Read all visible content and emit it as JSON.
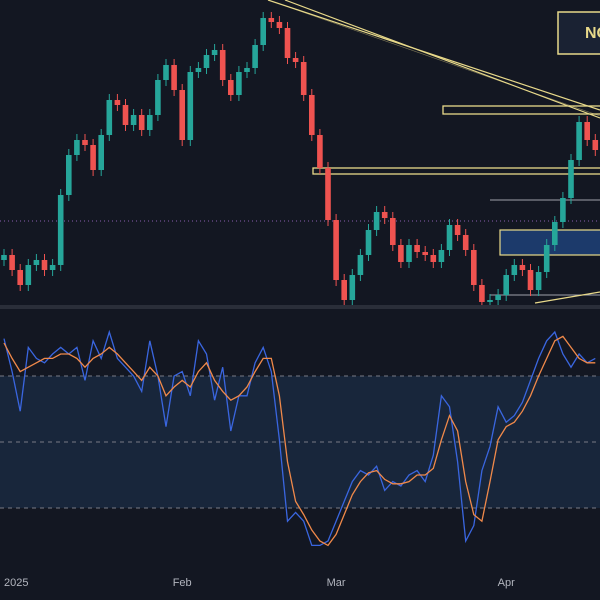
{
  "chart_data": [
    {
      "type": "candlestick",
      "annotation": "NO",
      "up_color": "#26a69a",
      "down_color": "#ef5350",
      "ylim": [
        0,
        310
      ],
      "xticks": [
        {
          "value": 0,
          "label": "2025"
        },
        {
          "value": 22,
          "label": "Feb"
        },
        {
          "value": 41,
          "label": "Mar"
        },
        {
          "value": 62,
          "label": "Apr"
        }
      ],
      "open": [
        50,
        55,
        40,
        25,
        45,
        50,
        40,
        45,
        115,
        155,
        170,
        165,
        140,
        175,
        210,
        205,
        185,
        195,
        180,
        195,
        230,
        245,
        220,
        170,
        238,
        242,
        255,
        260,
        230,
        215,
        238,
        242,
        265,
        292,
        288,
        282,
        252,
        248,
        215,
        175,
        142,
        90,
        30,
        10,
        35,
        55,
        80,
        98,
        92,
        65,
        48,
        65,
        58,
        55,
        48,
        60,
        85,
        75,
        60,
        25,
        8,
        10,
        15,
        35,
        45,
        40,
        20,
        38,
        65,
        88,
        112,
        150,
        188,
        170
      ],
      "high": [
        61,
        61,
        46,
        51,
        56,
        56,
        51,
        121,
        161,
        176,
        176,
        171,
        181,
        216,
        216,
        211,
        201,
        201,
        201,
        236,
        251,
        251,
        226,
        244,
        248,
        261,
        266,
        266,
        236,
        244,
        248,
        271,
        298,
        298,
        294,
        288,
        258,
        254,
        221,
        181,
        148,
        96,
        36,
        41,
        61,
        86,
        104,
        104,
        98,
        71,
        71,
        71,
        64,
        61,
        66,
        91,
        91,
        81,
        66,
        31,
        16,
        21,
        41,
        51,
        51,
        46,
        44,
        71,
        94,
        118,
        156,
        194,
        194,
        176
      ],
      "low": [
        44,
        34,
        19,
        19,
        39,
        34,
        34,
        39,
        109,
        149,
        159,
        134,
        134,
        169,
        199,
        179,
        179,
        174,
        174,
        189,
        224,
        214,
        164,
        164,
        232,
        236,
        249,
        224,
        209,
        209,
        232,
        236,
        259,
        282,
        276,
        246,
        242,
        209,
        169,
        136,
        84,
        24,
        4,
        4,
        29,
        49,
        74,
        86,
        59,
        42,
        42,
        52,
        49,
        42,
        42,
        54,
        69,
        54,
        19,
        2,
        2,
        4,
        9,
        29,
        34,
        14,
        14,
        32,
        59,
        82,
        106,
        144,
        164,
        154
      ],
      "close": [
        55,
        40,
        25,
        45,
        50,
        40,
        45,
        115,
        155,
        170,
        165,
        140,
        175,
        210,
        205,
        185,
        195,
        180,
        195,
        230,
        245,
        220,
        170,
        238,
        242,
        255,
        260,
        230,
        215,
        238,
        242,
        265,
        292,
        288,
        282,
        252,
        248,
        215,
        175,
        142,
        90,
        30,
        10,
        35,
        55,
        80,
        98,
        92,
        65,
        48,
        65,
        58,
        55,
        48,
        60,
        85,
        75,
        60,
        25,
        8,
        10,
        15,
        35,
        45,
        40,
        20,
        38,
        65,
        88,
        112,
        150,
        188,
        170,
        160
      ]
    },
    {
      "type": "line",
      "ylim": [
        -10,
        110
      ],
      "levels": [
        20,
        50,
        80
      ],
      "band_color": "#1e3350",
      "series": [
        {
          "color": "#3a66e0",
          "values": [
            97,
            82,
            64,
            93,
            88,
            86,
            90,
            93,
            90,
            93,
            78,
            96,
            88,
            100,
            88,
            84,
            80,
            73,
            96,
            80,
            57,
            80,
            82,
            71,
            96,
            90,
            69,
            84,
            55,
            71,
            71,
            86,
            93,
            82,
            51,
            14,
            18,
            14,
            3,
            3,
            5,
            14,
            23,
            32,
            37,
            35,
            39,
            28,
            32,
            30,
            35,
            37,
            32,
            44,
            71,
            66,
            41,
            5,
            12,
            37,
            48,
            66,
            59,
            62,
            68,
            78,
            88,
            96,
            100,
            90,
            84,
            90,
            86,
            88
          ]
        },
        {
          "color": "#f0894a",
          "values": [
            95,
            88,
            82,
            84,
            86,
            88,
            88,
            90,
            90,
            88,
            84,
            88,
            90,
            93,
            90,
            86,
            82,
            78,
            84,
            80,
            71,
            75,
            78,
            75,
            82,
            86,
            78,
            73,
            69,
            71,
            75,
            82,
            88,
            88,
            71,
            41,
            23,
            17,
            10,
            5,
            3,
            8,
            17,
            26,
            32,
            36,
            37,
            33,
            31,
            31,
            32,
            35,
            35,
            38,
            51,
            62,
            55,
            32,
            17,
            14,
            32,
            51,
            57,
            59,
            64,
            71,
            80,
            88,
            96,
            98,
            93,
            88,
            86,
            86
          ]
        }
      ]
    }
  ]
}
